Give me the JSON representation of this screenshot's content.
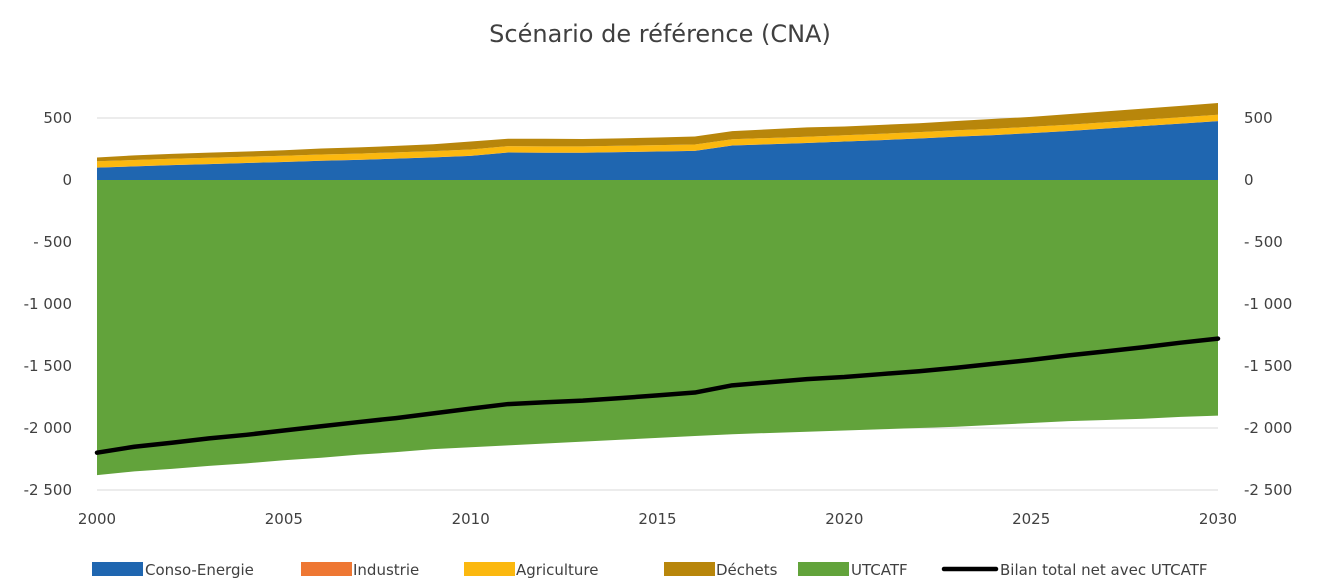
{
  "chart_data": {
    "type": "area",
    "title": "Scénario de référence (CNA)",
    "xlabel": "",
    "ylabel": "",
    "xlim": [
      2000,
      2030
    ],
    "ylim": [
      -2500,
      500
    ],
    "x_ticks": [
      "2000",
      "2005",
      "2010",
      "2015",
      "2020",
      "2025",
      "2030"
    ],
    "y_ticks_left": [
      "500",
      "0",
      "- 500",
      "-1 000",
      "-1 500",
      "-2 000",
      "-2 500"
    ],
    "y_ticks_right": [
      "500",
      "0",
      "- 500",
      "-1 000",
      "-1 500",
      "-2 000",
      "-2 500"
    ],
    "y_tick_values": [
      500,
      0,
      -500,
      -1000,
      -1500,
      -2000,
      -2500
    ],
    "grid": true,
    "legend_position": "bottom",
    "x": [
      2000,
      2001,
      2002,
      2003,
      2004,
      2005,
      2006,
      2007,
      2008,
      2009,
      2010,
      2011,
      2012,
      2013,
      2014,
      2015,
      2016,
      2017,
      2018,
      2019,
      2020,
      2021,
      2022,
      2023,
      2024,
      2025,
      2026,
      2027,
      2028,
      2029,
      2030
    ],
    "series": [
      {
        "name": "Conso-Energie",
        "color": "#1f66b0",
        "kind": "area",
        "values": [
          100,
          110,
          120,
          128,
          137,
          145,
          155,
          162,
          172,
          182,
          195,
          222,
          220,
          220,
          225,
          230,
          235,
          278,
          288,
          298,
          310,
          322,
          335,
          350,
          362,
          378,
          395,
          415,
          435,
          455,
          475
        ]
      },
      {
        "name": "Industrie",
        "color": "#ee7733",
        "kind": "area",
        "values": [
          1,
          1,
          1,
          1,
          1,
          1,
          1,
          1,
          1,
          1,
          1,
          1,
          1,
          1,
          1,
          1,
          1,
          1,
          1,
          1,
          1,
          1,
          1,
          1,
          1,
          1,
          1,
          1,
          1,
          1,
          1
        ]
      },
      {
        "name": "Agriculture",
        "color": "#fbb80f",
        "kind": "area",
        "values": [
          50,
          50,
          50,
          50,
          50,
          50,
          50,
          50,
          50,
          50,
          50,
          50,
          50,
          50,
          50,
          50,
          50,
          50,
          50,
          50,
          50,
          50,
          50,
          50,
          50,
          50,
          50,
          50,
          50,
          50,
          50
        ]
      },
      {
        "name": "Déchets",
        "color": "#b8860b",
        "kind": "area",
        "values": [
          30,
          38,
          40,
          42,
          42,
          44,
          48,
          50,
          52,
          55,
          65,
          60,
          62,
          60,
          60,
          62,
          65,
          65,
          70,
          75,
          70,
          72,
          72,
          75,
          80,
          80,
          85,
          87,
          90,
          92,
          95
        ]
      },
      {
        "name": "UTCATF",
        "color": "#62a33b",
        "kind": "area",
        "values": [
          -2380,
          -2350,
          -2330,
          -2305,
          -2285,
          -2260,
          -2240,
          -2215,
          -2195,
          -2170,
          -2155,
          -2140,
          -2125,
          -2110,
          -2095,
          -2080,
          -2065,
          -2050,
          -2040,
          -2030,
          -2020,
          -2010,
          -2000,
          -1990,
          -1975,
          -1960,
          -1945,
          -1935,
          -1925,
          -1910,
          -1900
        ]
      },
      {
        "name": "Bilan total net avec UTCATF",
        "color": "#000000",
        "kind": "line",
        "values": [
          -2199,
          -2151,
          -2119,
          -2084,
          -2055,
          -2020,
          -1986,
          -1952,
          -1920,
          -1882,
          -1844,
          -1807,
          -1792,
          -1779,
          -1759,
          -1737,
          -1714,
          -1656,
          -1631,
          -1606,
          -1589,
          -1565,
          -1542,
          -1514,
          -1482,
          -1451,
          -1414,
          -1382,
          -1349,
          -1312,
          -1279
        ]
      }
    ]
  }
}
